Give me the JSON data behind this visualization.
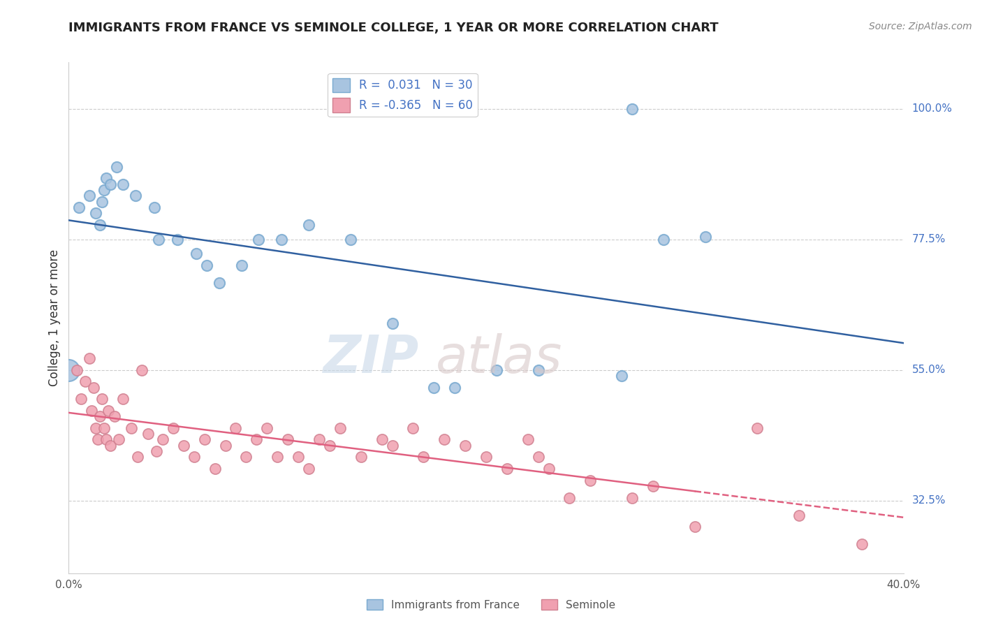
{
  "title": "IMMIGRANTS FROM FRANCE VS SEMINOLE COLLEGE, 1 YEAR OR MORE CORRELATION CHART",
  "source_text": "Source: ZipAtlas.com",
  "ylabel": "College, 1 year or more",
  "xlim": [
    0.0,
    40.0
  ],
  "ylim": [
    20.0,
    108.0
  ],
  "x_tick_labels": [
    "0.0%",
    "40.0%"
  ],
  "y_tick_labels_right": [
    "32.5%",
    "55.0%",
    "77.5%",
    "100.0%"
  ],
  "y_tick_values_right": [
    32.5,
    55.0,
    77.5,
    100.0
  ],
  "legend_blue_label": "R =  0.031   N = 30",
  "legend_pink_label": "R = -0.365   N = 60",
  "legend_bottom_blue": "Immigrants from France",
  "legend_bottom_pink": "Seminole",
  "blue_color": "#a8c4e0",
  "pink_color": "#f0a0b0",
  "blue_edge_color": "#7aaad0",
  "pink_edge_color": "#d08090",
  "blue_line_color": "#3060a0",
  "pink_line_color": "#e06080",
  "grid_color": "#cccccc",
  "background_color": "#ffffff",
  "title_color": "#222222",
  "source_color": "#888888",
  "label_color": "#4472c4",
  "axis_label_color": "#333333",
  "tick_color": "#555555",
  "bx": [
    0.5,
    1.0,
    1.3,
    1.5,
    1.6,
    1.7,
    1.8,
    2.0,
    2.3,
    2.6,
    3.2,
    4.1,
    4.3,
    5.2,
    6.1,
    6.6,
    7.2,
    8.3,
    9.1,
    10.2,
    11.5,
    13.5,
    15.5,
    17.5,
    18.5,
    20.5,
    22.5,
    26.5,
    28.5,
    30.5
  ],
  "by": [
    83,
    85,
    82,
    80,
    84,
    86,
    88,
    87,
    90,
    87,
    85,
    83,
    77.5,
    77.5,
    75,
    73,
    70,
    73,
    77.5,
    77.5,
    80,
    77.5,
    63,
    52,
    52,
    55,
    55,
    54,
    77.5,
    78
  ],
  "blue_large_x": 0.0,
  "blue_large_y": 55.0,
  "blue_large_size": 500,
  "blue_top_x": 27.0,
  "blue_top_y": 100.0,
  "px": [
    0.4,
    0.6,
    0.8,
    1.0,
    1.1,
    1.2,
    1.3,
    1.4,
    1.5,
    1.6,
    1.7,
    1.8,
    1.9,
    2.0,
    2.2,
    2.4,
    2.6,
    3.0,
    3.3,
    3.5,
    3.8,
    4.2,
    4.5,
    5.0,
    5.5,
    6.0,
    6.5,
    7.0,
    7.5,
    8.0,
    8.5,
    9.0,
    9.5,
    10.0,
    10.5,
    11.0,
    11.5,
    12.0,
    12.5,
    13.0,
    14.0,
    15.0,
    15.5,
    16.5,
    17.0,
    18.0,
    19.0,
    20.0,
    21.0,
    22.0,
    22.5,
    23.0,
    24.0,
    25.0,
    27.0,
    28.0,
    30.0,
    33.0,
    35.0,
    38.0
  ],
  "py": [
    55,
    50,
    53,
    57,
    48,
    52,
    45,
    43,
    47,
    50,
    45,
    43,
    48,
    42,
    47,
    43,
    50,
    45,
    40,
    55,
    44,
    41,
    43,
    45,
    42,
    40,
    43,
    38,
    42,
    45,
    40,
    43,
    45,
    40,
    43,
    40,
    38,
    43,
    42,
    45,
    40,
    43,
    42,
    45,
    40,
    43,
    42,
    40,
    38,
    43,
    40,
    38,
    33,
    36,
    33,
    35,
    28,
    45,
    30,
    25
  ],
  "dot_size": 120,
  "watermark_zip_color": "#c8d8e8",
  "watermark_atlas_color": "#d8c8c8"
}
